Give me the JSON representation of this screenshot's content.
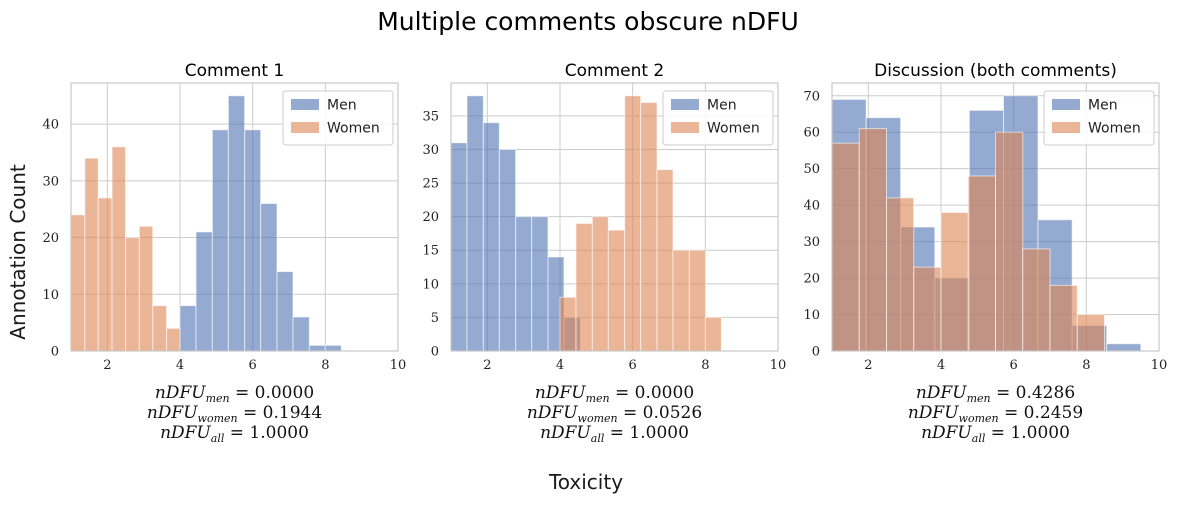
{
  "figure": {
    "title": "Multiple comments obscure nDFU",
    "ylabel": "Annotation Count",
    "xlabel": "Toxicity"
  },
  "colors": {
    "men": "#4c72b0",
    "women": "#dd8452",
    "grid": "#cccccc",
    "frame": "#c8c8c8"
  },
  "chart_data": [
    {
      "type": "bar",
      "title": "Comment 1",
      "xlim": [
        1,
        10
      ],
      "ylim": [
        0,
        47.25
      ],
      "xticks": [
        2,
        4,
        6,
        8,
        10
      ],
      "yticks": [
        0,
        10,
        20,
        30,
        40
      ],
      "legend": "top-right",
      "series": [
        {
          "name": "Men",
          "color_key": "men",
          "bins": [
            {
              "x0": 4.0,
              "x1": 4.44,
              "count": 8
            },
            {
              "x0": 4.44,
              "x1": 4.89,
              "count": 21
            },
            {
              "x0": 4.89,
              "x1": 5.33,
              "count": 39
            },
            {
              "x0": 5.33,
              "x1": 5.78,
              "count": 45
            },
            {
              "x0": 5.78,
              "x1": 6.22,
              "count": 39
            },
            {
              "x0": 6.22,
              "x1": 6.67,
              "count": 26
            },
            {
              "x0": 6.67,
              "x1": 7.11,
              "count": 14
            },
            {
              "x0": 7.11,
              "x1": 7.56,
              "count": 6
            },
            {
              "x0": 7.56,
              "x1": 8.0,
              "count": 1
            },
            {
              "x0": 8.0,
              "x1": 8.44,
              "count": 1
            }
          ]
        },
        {
          "name": "Women",
          "color_key": "women",
          "bins": [
            {
              "x0": 1.0,
              "x1": 1.38,
              "count": 24
            },
            {
              "x0": 1.38,
              "x1": 1.75,
              "count": 34
            },
            {
              "x0": 1.75,
              "x1": 2.13,
              "count": 27
            },
            {
              "x0": 2.13,
              "x1": 2.5,
              "count": 36
            },
            {
              "x0": 2.5,
              "x1": 2.88,
              "count": 20
            },
            {
              "x0": 2.88,
              "x1": 3.25,
              "count": 22
            },
            {
              "x0": 3.25,
              "x1": 3.63,
              "count": 8
            },
            {
              "x0": 3.63,
              "x1": 4.0,
              "count": 4
            }
          ]
        }
      ],
      "annotations": {
        "ndfu_men": "0.0000",
        "ndfu_women": "0.1944",
        "ndfu_all": "1.0000"
      }
    },
    {
      "type": "bar",
      "title": "Comment 2",
      "xlim": [
        1,
        10
      ],
      "ylim": [
        0,
        39.9
      ],
      "xticks": [
        2,
        4,
        6,
        8,
        10
      ],
      "yticks": [
        0,
        5,
        10,
        15,
        20,
        25,
        30,
        35
      ],
      "legend": "top-right",
      "series": [
        {
          "name": "Men",
          "color_key": "men",
          "bins": [
            {
              "x0": 1.0,
              "x1": 1.44,
              "count": 31
            },
            {
              "x0": 1.44,
              "x1": 1.89,
              "count": 38
            },
            {
              "x0": 1.89,
              "x1": 2.33,
              "count": 34
            },
            {
              "x0": 2.33,
              "x1": 2.78,
              "count": 30
            },
            {
              "x0": 2.78,
              "x1": 3.22,
              "count": 20
            },
            {
              "x0": 3.22,
              "x1": 3.67,
              "count": 20
            },
            {
              "x0": 3.67,
              "x1": 4.11,
              "count": 14
            },
            {
              "x0": 4.11,
              "x1": 4.56,
              "count": 5
            }
          ]
        },
        {
          "name": "Women",
          "color_key": "women",
          "bins": [
            {
              "x0": 4.0,
              "x1": 4.44,
              "count": 8
            },
            {
              "x0": 4.44,
              "x1": 4.89,
              "count": 19
            },
            {
              "x0": 4.89,
              "x1": 5.33,
              "count": 20
            },
            {
              "x0": 5.33,
              "x1": 5.78,
              "count": 18
            },
            {
              "x0": 5.78,
              "x1": 6.22,
              "count": 38
            },
            {
              "x0": 6.22,
              "x1": 6.67,
              "count": 37
            },
            {
              "x0": 6.67,
              "x1": 7.11,
              "count": 27
            },
            {
              "x0": 7.11,
              "x1": 7.56,
              "count": 15
            },
            {
              "x0": 7.56,
              "x1": 8.0,
              "count": 15
            },
            {
              "x0": 8.0,
              "x1": 8.44,
              "count": 5
            }
          ]
        }
      ],
      "annotations": {
        "ndfu_men": "0.0000",
        "ndfu_women": "0.0526",
        "ndfu_all": "1.0000"
      }
    },
    {
      "type": "bar",
      "title": "Discussion (both comments)",
      "xlim": [
        1,
        10
      ],
      "ylim": [
        0,
        73.5
      ],
      "xticks": [
        2,
        4,
        6,
        8,
        10
      ],
      "yticks": [
        0,
        10,
        20,
        30,
        40,
        50,
        60,
        70
      ],
      "legend": "top-right",
      "series": [
        {
          "name": "Men",
          "color_key": "men",
          "bins": [
            {
              "x0": 1.0,
              "x1": 1.94,
              "count": 69
            },
            {
              "x0": 1.94,
              "x1": 2.89,
              "count": 64
            },
            {
              "x0": 2.89,
              "x1": 3.83,
              "count": 34
            },
            {
              "x0": 3.83,
              "x1": 4.78,
              "count": 20
            },
            {
              "x0": 4.78,
              "x1": 5.72,
              "count": 66
            },
            {
              "x0": 5.72,
              "x1": 6.67,
              "count": 70
            },
            {
              "x0": 6.67,
              "x1": 7.61,
              "count": 36
            },
            {
              "x0": 7.61,
              "x1": 8.56,
              "count": 7
            },
            {
              "x0": 8.56,
              "x1": 9.5,
              "count": 2
            }
          ]
        },
        {
          "name": "Women",
          "color_key": "women",
          "bins": [
            {
              "x0": 1.0,
              "x1": 1.75,
              "count": 57
            },
            {
              "x0": 1.75,
              "x1": 2.5,
              "count": 61
            },
            {
              "x0": 2.5,
              "x1": 3.25,
              "count": 42
            },
            {
              "x0": 3.25,
              "x1": 4.0,
              "count": 23
            },
            {
              "x0": 4.0,
              "x1": 4.75,
              "count": 38
            },
            {
              "x0": 4.75,
              "x1": 5.5,
              "count": 48
            },
            {
              "x0": 5.5,
              "x1": 6.25,
              "count": 60
            },
            {
              "x0": 6.25,
              "x1": 7.0,
              "count": 28
            },
            {
              "x0": 7.0,
              "x1": 7.75,
              "count": 18
            },
            {
              "x0": 7.75,
              "x1": 8.5,
              "count": 10
            }
          ]
        }
      ],
      "annotations": {
        "ndfu_men": "0.4286",
        "ndfu_women": "0.2459",
        "ndfu_all": "1.0000"
      }
    }
  ],
  "annotation_labels": {
    "base": "nDFU",
    "eq": " = ",
    "men": "men",
    "women": "women",
    "all": "all"
  }
}
